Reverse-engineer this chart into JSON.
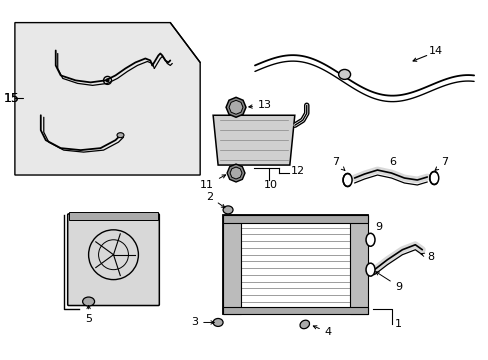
{
  "background_color": "#ffffff",
  "line_color": "#000000",
  "gray_fill": "#d8d8d8",
  "light_gray": "#eeeeee",
  "fig_width": 4.89,
  "fig_height": 3.6,
  "dpi": 100
}
